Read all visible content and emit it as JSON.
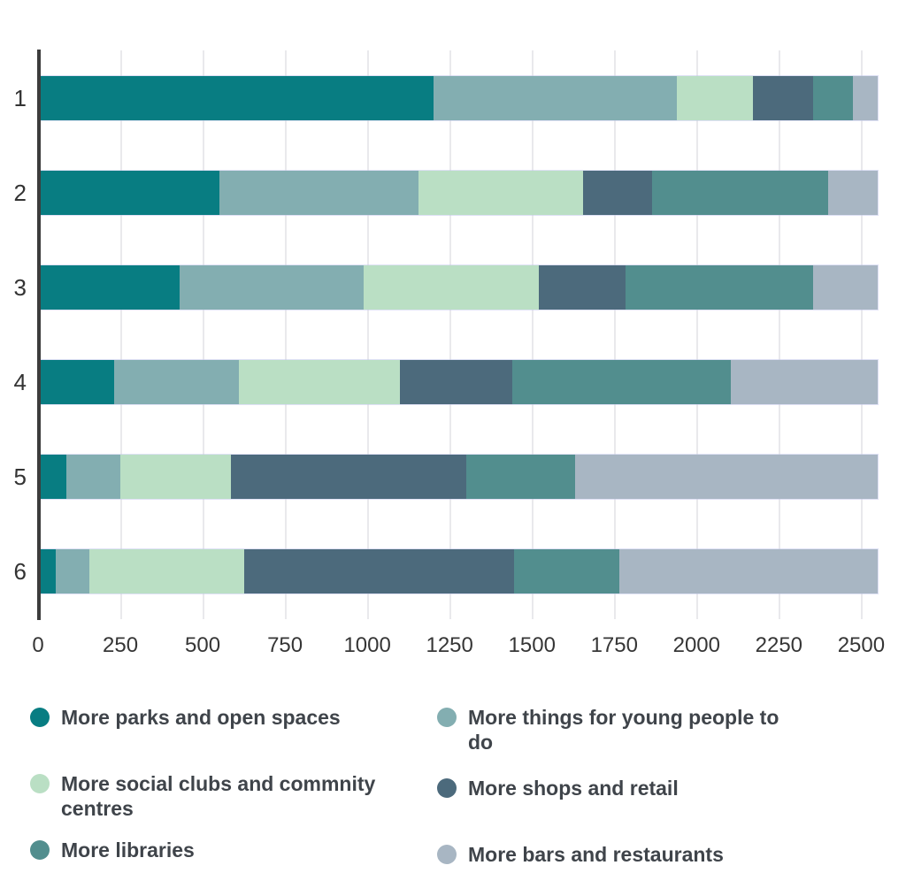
{
  "chart_data": {
    "type": "bar",
    "orientation": "horizontal",
    "stacked": true,
    "title": "",
    "xlabel": "",
    "ylabel": "",
    "categories": [
      "1",
      "2",
      "3",
      "4",
      "5",
      "6"
    ],
    "series": [
      {
        "name": "More parks and open spaces",
        "color": "#087d82",
        "values": [
          1200,
          550,
          430,
          230,
          85,
          55
        ]
      },
      {
        "name": "More things for young people to do",
        "color": "#83aeb1",
        "values": [
          740,
          605,
          560,
          380,
          165,
          100
        ]
      },
      {
        "name": "More social clubs and commnity centres",
        "color": "#badfc4",
        "values": [
          230,
          500,
          530,
          490,
          335,
          470
        ]
      },
      {
        "name": "More shops and retail",
        "color": "#4c6a7c",
        "values": [
          185,
          210,
          265,
          340,
          715,
          820
        ]
      },
      {
        "name": "More libraries",
        "color": "#528e8e",
        "values": [
          120,
          535,
          570,
          665,
          330,
          320
        ]
      },
      {
        "name": "More bars and restaurants",
        "color": "#a8b6c3",
        "values": [
          75,
          150,
          195,
          445,
          920,
          785
        ]
      }
    ],
    "xlim": [
      0,
      2550
    ],
    "x_ticks": [
      0,
      250,
      500,
      750,
      1000,
      1250,
      1500,
      1750,
      2000,
      2250,
      2500
    ],
    "grid": true,
    "legend_position": "bottom"
  },
  "legend": {
    "columns": [
      [
        0,
        2,
        4
      ],
      [
        1,
        3,
        5
      ]
    ]
  }
}
